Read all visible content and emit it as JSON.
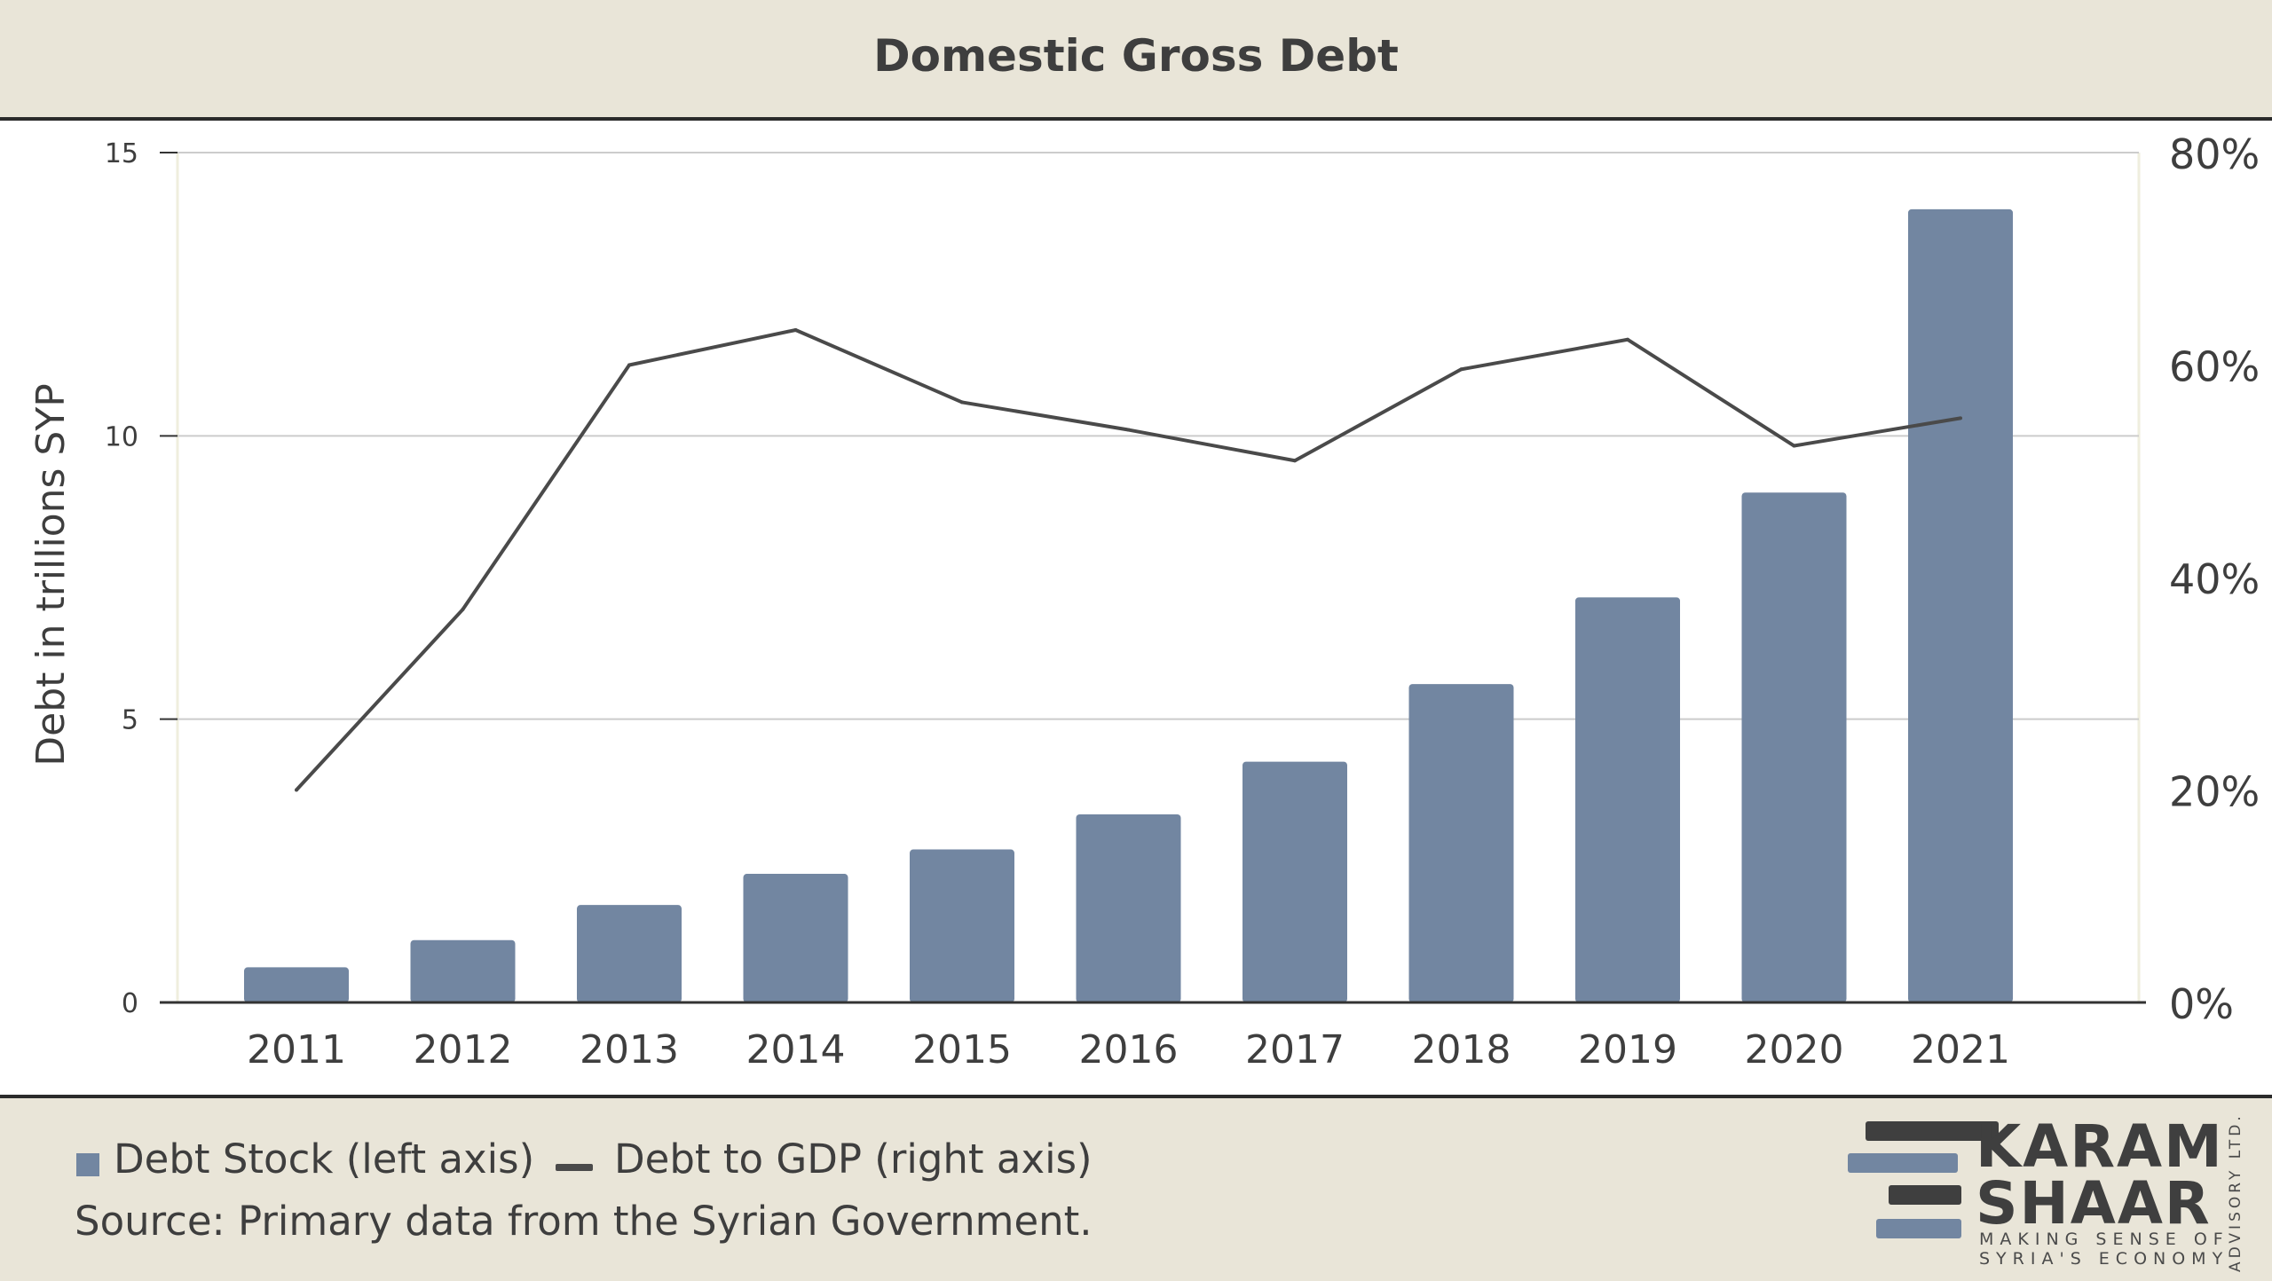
{
  "title": "Domestic Gross Debt",
  "colors": {
    "bars": "#7286a1",
    "line": "#4a4a4a",
    "grid": "#cccccc",
    "axis": "#333333"
  },
  "chart_data": {
    "type": "bar",
    "categories": [
      "2011",
      "2012",
      "2013",
      "2014",
      "2015",
      "2016",
      "2017",
      "2018",
      "2019",
      "2020",
      "2021"
    ],
    "series": [
      {
        "name": "Debt Stock (left axis)",
        "type": "bar",
        "axis": "left",
        "values": [
          0.62,
          1.1,
          1.72,
          2.27,
          2.7,
          3.32,
          4.25,
          5.62,
          7.15,
          9.0,
          14.0
        ]
      },
      {
        "name": "Debt to GDP (right axis)",
        "type": "line",
        "axis": "right",
        "values": [
          20,
          37,
          60,
          63.3,
          56.5,
          53.9,
          51,
          59.6,
          62.4,
          52.4,
          55
        ]
      }
    ],
    "ylabel": "Debt in trillions SYP",
    "ylim": [
      0,
      15
    ],
    "yticks": [
      "0",
      "5",
      "10",
      "15"
    ],
    "y2lim": [
      0,
      80
    ],
    "y2ticks": [
      "0%",
      "20%",
      "40%",
      "60%",
      "80%"
    ],
    "grid": true,
    "legend_position": "bottom-left"
  },
  "legend": {
    "bars_label": "Debt Stock (left axis)",
    "line_label": "Debt to GDP (right axis)"
  },
  "source": "Source: Primary data from the Syrian Government.",
  "logo": {
    "word1": "KARAM",
    "word2": "SHAAR",
    "tagline1": "MAKING SENSE OF",
    "tagline2": "SYRIA'S ECONOMY",
    "vertical": "ADVISORY LTD."
  }
}
